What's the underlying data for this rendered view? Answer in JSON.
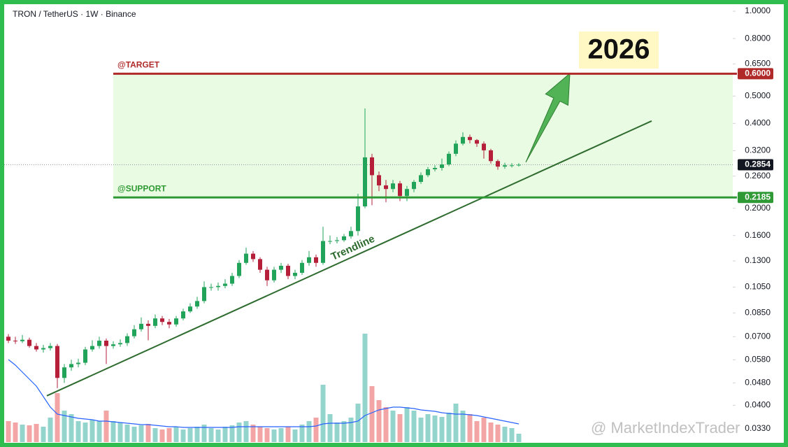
{
  "chart_data": {
    "type": "candlestick",
    "title": "TRON / TetherUS · 1W · Binance",
    "log_scale": true,
    "up_color": "#22a35a",
    "down_color": "#b51f3a",
    "volume_up_color": "#93d5cd",
    "volume_down_color": "#f3a5a5",
    "volume_ma_color": "#2962ff",
    "open": [
      0.07,
      0.0678,
      0.0675,
      0.0683,
      0.0649,
      0.0631,
      0.0638,
      0.0649,
      0.05,
      0.0545,
      0.056,
      0.0566,
      0.0631,
      0.0649,
      0.0678,
      0.0649,
      0.0658,
      0.0665,
      0.0703,
      0.0744,
      0.0778,
      0.0765,
      0.0813,
      0.079,
      0.0774,
      0.0813,
      0.0861,
      0.0896,
      0.0937,
      0.105,
      0.105,
      0.106,
      0.108,
      0.115,
      0.128,
      0.138,
      0.132,
      0.121,
      0.111,
      0.121,
      0.125,
      0.115,
      0.118,
      0.128,
      0.134,
      0.128,
      0.153,
      0.153,
      0.154,
      0.159,
      0.166,
      0.203,
      0.303,
      0.262,
      0.241,
      0.234,
      0.245,
      0.221,
      0.234,
      0.248,
      0.262,
      0.275,
      0.278,
      0.286,
      0.312,
      0.339,
      0.358,
      0.349,
      0.339,
      0.321,
      0.294,
      0.281,
      0.284,
      0.284
    ],
    "high": [
      0.0715,
      0.07,
      0.071,
      0.0695,
      0.0665,
      0.0655,
      0.0665,
      0.066,
      0.056,
      0.058,
      0.0585,
      0.0645,
      0.068,
      0.07,
      0.069,
      0.0675,
      0.0685,
      0.072,
      0.077,
      0.082,
      0.08,
      0.084,
      0.083,
      0.081,
      0.083,
      0.088,
      0.092,
      0.097,
      0.11,
      0.108,
      0.109,
      0.112,
      0.118,
      0.131,
      0.145,
      0.141,
      0.134,
      0.124,
      0.124,
      0.128,
      0.127,
      0.121,
      0.131,
      0.141,
      0.137,
      0.172,
      0.16,
      0.158,
      0.162,
      0.172,
      0.225,
      0.452,
      0.312,
      0.27,
      0.252,
      0.252,
      0.25,
      0.24,
      0.252,
      0.268,
      0.28,
      0.284,
      0.3,
      0.318,
      0.348,
      0.372,
      0.365,
      0.352,
      0.345,
      0.325,
      0.298,
      0.29,
      0.289,
      0.289
    ],
    "low": [
      0.0665,
      0.066,
      0.0665,
      0.064,
      0.062,
      0.0615,
      0.0625,
      0.046,
      0.048,
      0.053,
      0.0545,
      0.0555,
      0.062,
      0.0635,
      0.056,
      0.0635,
      0.0645,
      0.065,
      0.069,
      0.073,
      0.068,
      0.075,
      0.077,
      0.075,
      0.076,
      0.08,
      0.085,
      0.088,
      0.092,
      0.102,
      0.102,
      0.104,
      0.106,
      0.113,
      0.126,
      0.129,
      0.118,
      0.106,
      0.109,
      0.118,
      0.112,
      0.112,
      0.116,
      0.125,
      0.124,
      0.126,
      0.149,
      0.15,
      0.152,
      0.156,
      0.16,
      0.2,
      0.205,
      0.23,
      0.21,
      0.228,
      0.212,
      0.212,
      0.228,
      0.244,
      0.258,
      0.27,
      0.272,
      0.282,
      0.306,
      0.334,
      0.34,
      0.33,
      0.3,
      0.288,
      0.274,
      0.276,
      0.279,
      0.281
    ],
    "close": [
      0.0678,
      0.0675,
      0.0683,
      0.0649,
      0.0631,
      0.0638,
      0.0649,
      0.05,
      0.0545,
      0.056,
      0.0566,
      0.0631,
      0.0649,
      0.0678,
      0.0649,
      0.0658,
      0.0665,
      0.0703,
      0.0744,
      0.0778,
      0.0765,
      0.0813,
      0.079,
      0.0774,
      0.0813,
      0.0861,
      0.0896,
      0.0937,
      0.105,
      0.105,
      0.106,
      0.108,
      0.115,
      0.128,
      0.138,
      0.132,
      0.121,
      0.111,
      0.121,
      0.125,
      0.115,
      0.118,
      0.128,
      0.134,
      0.128,
      0.153,
      0.153,
      0.154,
      0.159,
      0.166,
      0.203,
      0.303,
      0.262,
      0.241,
      0.234,
      0.245,
      0.221,
      0.234,
      0.248,
      0.262,
      0.275,
      0.278,
      0.286,
      0.312,
      0.339,
      0.358,
      0.349,
      0.339,
      0.321,
      0.294,
      0.281,
      0.284,
      0.284,
      0.2854
    ],
    "volume": [
      30,
      28,
      25,
      24,
      26,
      22,
      35,
      70,
      45,
      40,
      30,
      28,
      32,
      30,
      45,
      30,
      28,
      25,
      22,
      24,
      26,
      20,
      18,
      20,
      22,
      18,
      20,
      22,
      25,
      20,
      18,
      22,
      24,
      28,
      30,
      25,
      22,
      20,
      18,
      20,
      22,
      18,
      25,
      30,
      35,
      82,
      40,
      28,
      30,
      35,
      55,
      155,
      80,
      60,
      50,
      45,
      40,
      50,
      45,
      35,
      40,
      38,
      36,
      42,
      55,
      45,
      40,
      30,
      35,
      28,
      25,
      22,
      20,
      12
    ],
    "volume_ma": [
      118,
      110,
      100,
      90,
      80,
      65,
      50,
      40,
      38,
      36,
      34,
      33,
      32,
      30,
      30,
      29,
      28,
      27,
      26,
      25,
      25,
      24,
      23,
      22,
      22,
      21,
      21,
      21,
      21,
      21,
      21,
      21,
      21,
      22,
      22,
      22,
      22,
      22,
      22,
      22,
      22,
      22,
      22,
      22,
      23,
      26,
      27,
      27,
      27,
      28,
      30,
      38,
      42,
      46,
      48,
      50,
      50,
      49,
      48,
      46,
      45,
      44,
      42,
      41,
      40,
      40,
      39,
      38,
      36,
      34,
      32,
      30,
      28,
      26
    ],
    "volume_ylim": [
      0,
      160
    ],
    "ylim": [
      0.0296,
      1.053
    ],
    "yticks": [
      {
        "value": 1.0,
        "label": "1.0000"
      },
      {
        "value": 0.8,
        "label": "0.8000"
      },
      {
        "value": 0.65,
        "label": "0.6500"
      },
      {
        "value": 0.5,
        "label": "0.5000"
      },
      {
        "value": 0.4,
        "label": "0.4000"
      },
      {
        "value": 0.32,
        "label": "0.3200"
      },
      {
        "value": 0.26,
        "label": "0.2600"
      },
      {
        "value": 0.2,
        "label": "0.2000"
      },
      {
        "value": 0.16,
        "label": "0.1600"
      },
      {
        "value": 0.13,
        "label": "0.1300"
      },
      {
        "value": 0.105,
        "label": "0.1050"
      },
      {
        "value": 0.085,
        "label": "0.0850"
      },
      {
        "value": 0.07,
        "label": "0.0700"
      },
      {
        "value": 0.058,
        "label": "0.0580"
      },
      {
        "value": 0.048,
        "label": "0.0480"
      },
      {
        "value": 0.04,
        "label": "0.0400"
      },
      {
        "value": 0.033,
        "label": "0.0330"
      }
    ],
    "levels": [
      {
        "label": "@TARGET",
        "value": 0.6,
        "value_label": "0.6000",
        "color": "#b02a2a"
      },
      {
        "label": "@SUPPORT",
        "value": 0.2185,
        "value_label": "0.2185",
        "color": "#2f9a35"
      }
    ],
    "zone_color": "#e9fbe2",
    "last_price": {
      "value": 0.2854,
      "label": "0.2854"
    },
    "trendline": {
      "label": "Trendline",
      "x": [
        5.5,
        92
      ],
      "y": [
        0.0432,
        0.408
      ],
      "color": "#2e6b2e"
    },
    "annotation": "2026",
    "watermark": "@ MarketIndexTrader"
  }
}
